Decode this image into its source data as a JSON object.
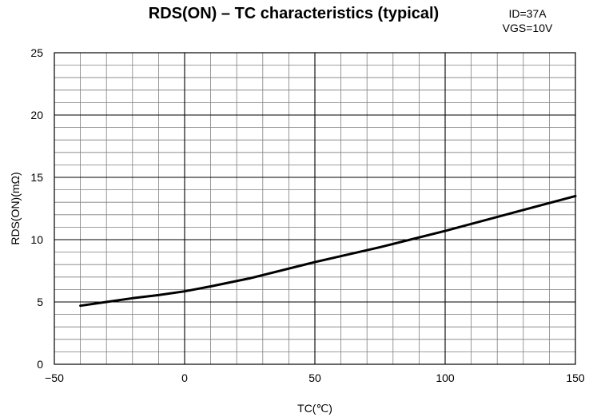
{
  "chart_data": {
    "type": "line",
    "title": "RDS(ON) – TC characteristics (typical)",
    "conditions": [
      "ID=37A",
      "VGS=10V"
    ],
    "xlabel": "TC(℃)",
    "ylabel": "RDS(ON)(mΩ)",
    "xlim": [
      -50,
      150
    ],
    "ylim": [
      0,
      25
    ],
    "x_ticks": [
      -50,
      0,
      50,
      100,
      150
    ],
    "y_ticks": [
      0,
      5,
      10,
      15,
      20,
      25
    ],
    "x_minor_step": 10,
    "y_minor_step": 1,
    "grid": true,
    "series": [
      {
        "x": [
          -40,
          -30,
          -20,
          -10,
          0,
          10,
          25,
          50,
          75,
          100,
          125,
          150
        ],
        "y": [
          4.7,
          5.0,
          5.3,
          5.55,
          5.85,
          6.25,
          6.9,
          8.2,
          9.4,
          10.7,
          12.1,
          13.5
        ]
      }
    ]
  }
}
